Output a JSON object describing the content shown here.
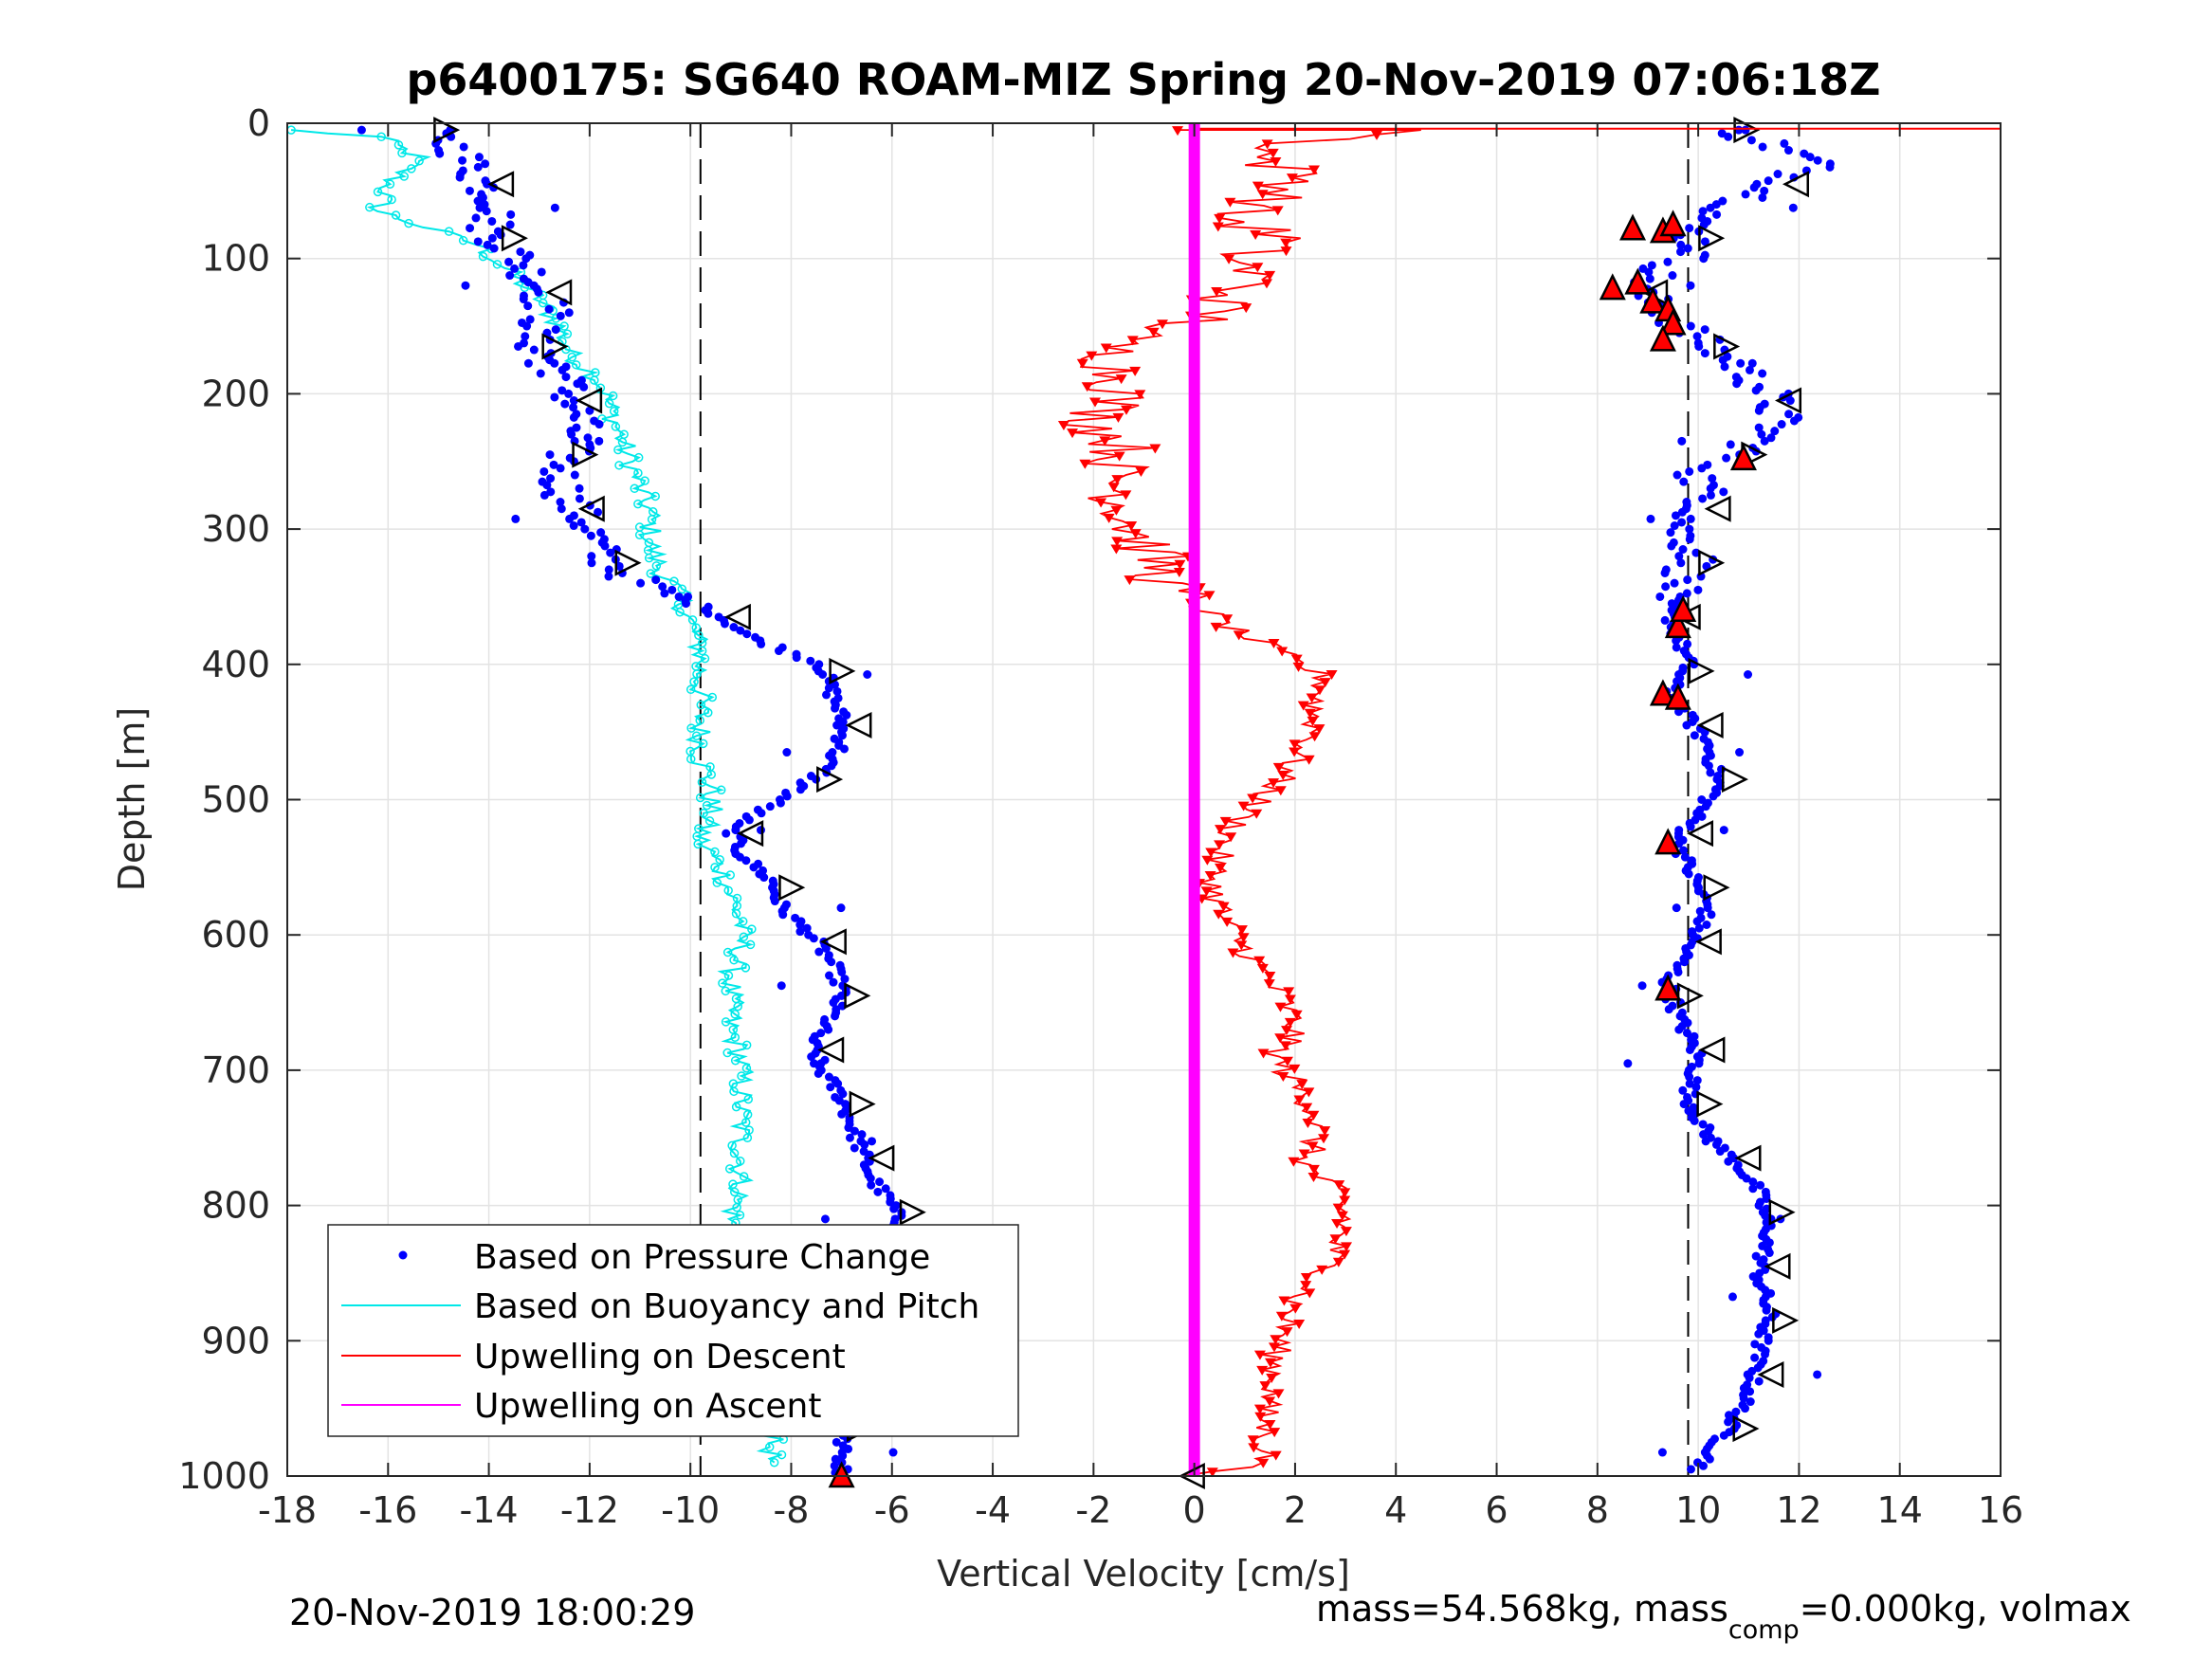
{
  "chart_data": {
    "type": "scatter",
    "title": "p6400175: SG640 ROAM-MIZ Spring 20-Nov-2019 07:06:18Z",
    "xlabel": "Vertical Velocity [cm/s]",
    "ylabel": "Depth [m]",
    "xlim": [
      -18,
      16
    ],
    "ylim": [
      0,
      1000
    ],
    "y_reversed": true,
    "xticks": [
      -18,
      -16,
      -14,
      -12,
      -10,
      -8,
      -6,
      -4,
      -2,
      0,
      2,
      4,
      6,
      8,
      10,
      12,
      14,
      16
    ],
    "yticks": [
      0,
      100,
      200,
      300,
      400,
      500,
      600,
      700,
      800,
      900,
      1000
    ],
    "grid": true,
    "legend_position": "bottom-left",
    "reference_lines_x": [
      -9.8,
      9.8
    ],
    "series": [
      {
        "name": "Based on Pressure Change",
        "color": "#0000ff",
        "style": "dots",
        "descent": [
          [
            -15.2,
            5
          ],
          [
            -14.6,
            20
          ],
          [
            -14.2,
            40
          ],
          [
            -13.8,
            60
          ],
          [
            -14.0,
            80
          ],
          [
            -13.4,
            100
          ],
          [
            -13.0,
            120
          ],
          [
            -12.8,
            140
          ],
          [
            -13.2,
            160
          ],
          [
            -12.6,
            180
          ],
          [
            -12.4,
            200
          ],
          [
            -12.2,
            220
          ],
          [
            -12.4,
            240
          ],
          [
            -12.6,
            260
          ],
          [
            -12.4,
            280
          ],
          [
            -12.0,
            300
          ],
          [
            -11.8,
            320
          ],
          [
            -11.0,
            340
          ],
          [
            -9.6,
            360
          ],
          [
            -8.8,
            380
          ],
          [
            -7.4,
            400
          ],
          [
            -7.2,
            420
          ],
          [
            -7.0,
            440
          ],
          [
            -7.0,
            460
          ],
          [
            -7.4,
            480
          ],
          [
            -8.2,
            500
          ],
          [
            -9.2,
            520
          ],
          [
            -9.0,
            540
          ],
          [
            -8.4,
            560
          ],
          [
            -8.2,
            580
          ],
          [
            -7.6,
            600
          ],
          [
            -7.2,
            620
          ],
          [
            -7.0,
            640
          ],
          [
            -7.2,
            660
          ],
          [
            -7.6,
            680
          ],
          [
            -7.4,
            700
          ],
          [
            -7.0,
            720
          ],
          [
            -6.8,
            740
          ],
          [
            -6.6,
            760
          ],
          [
            -6.4,
            780
          ],
          [
            -6.0,
            800
          ],
          [
            -5.8,
            820
          ],
          [
            -6.2,
            840
          ],
          [
            -6.6,
            860
          ],
          [
            -6.8,
            880
          ],
          [
            -7.0,
            900
          ],
          [
            -6.8,
            920
          ],
          [
            -7.0,
            940
          ],
          [
            -7.0,
            960
          ],
          [
            -7.0,
            980
          ],
          [
            -7.0,
            1000
          ]
        ],
        "ascent": [
          [
            10.0,
            995
          ],
          [
            10.5,
            970
          ],
          [
            11.0,
            940
          ],
          [
            11.2,
            910
          ],
          [
            11.4,
            880
          ],
          [
            11.2,
            850
          ],
          [
            11.4,
            820
          ],
          [
            11.2,
            790
          ],
          [
            10.8,
            770
          ],
          [
            10.2,
            750
          ],
          [
            9.8,
            720
          ],
          [
            10.0,
            690
          ],
          [
            9.6,
            660
          ],
          [
            9.4,
            635
          ],
          [
            9.8,
            610
          ],
          [
            10.2,
            580
          ],
          [
            9.8,
            550
          ],
          [
            9.6,
            530
          ],
          [
            10.0,
            510
          ],
          [
            10.4,
            490
          ],
          [
            10.2,
            460
          ],
          [
            9.8,
            440
          ],
          [
            9.4,
            420
          ],
          [
            9.8,
            400
          ],
          [
            9.6,
            380
          ],
          [
            9.4,
            360
          ],
          [
            9.6,
            340
          ],
          [
            10.0,
            320
          ],
          [
            9.6,
            300
          ],
          [
            10.2,
            280
          ],
          [
            10.0,
            260
          ],
          [
            11.0,
            240
          ],
          [
            11.6,
            220
          ],
          [
            11.4,
            200
          ],
          [
            10.8,
            180
          ],
          [
            10.0,
            160
          ],
          [
            9.4,
            140
          ],
          [
            8.8,
            125
          ],
          [
            9.2,
            110
          ],
          [
            10.0,
            95
          ],
          [
            9.8,
            75
          ],
          [
            10.8,
            60
          ],
          [
            11.6,
            45
          ],
          [
            12.4,
            30
          ],
          [
            11.4,
            15
          ],
          [
            10.6,
            5
          ]
        ]
      },
      {
        "name": "Based on Buoyancy and Pitch",
        "color": "#00e8e8",
        "style": "line-circles",
        "descent": [
          [
            -18.0,
            5
          ],
          [
            -16.2,
            10
          ],
          [
            -15.4,
            25
          ],
          [
            -16.0,
            45
          ],
          [
            -16.2,
            65
          ],
          [
            -15.0,
            80
          ],
          [
            -14.2,
            90
          ],
          [
            -13.6,
            110
          ],
          [
            -13.0,
            130
          ],
          [
            -12.6,
            150
          ],
          [
            -12.4,
            170
          ],
          [
            -11.8,
            190
          ],
          [
            -11.6,
            210
          ],
          [
            -11.4,
            230
          ],
          [
            -11.2,
            250
          ],
          [
            -11.0,
            270
          ],
          [
            -10.8,
            290
          ],
          [
            -10.8,
            310
          ],
          [
            -10.6,
            330
          ],
          [
            -10.2,
            350
          ],
          [
            -10.0,
            370
          ],
          [
            -9.8,
            390
          ],
          [
            -9.8,
            410
          ],
          [
            -9.8,
            430
          ],
          [
            -9.8,
            450
          ],
          [
            -9.8,
            470
          ],
          [
            -9.6,
            490
          ],
          [
            -9.6,
            510
          ],
          [
            -9.8,
            530
          ],
          [
            -9.4,
            550
          ],
          [
            -9.2,
            570
          ],
          [
            -9.0,
            590
          ],
          [
            -9.0,
            610
          ],
          [
            -9.2,
            630
          ],
          [
            -9.2,
            650
          ],
          [
            -9.2,
            670
          ],
          [
            -9.0,
            690
          ],
          [
            -9.0,
            710
          ],
          [
            -9.0,
            730
          ],
          [
            -9.0,
            750
          ],
          [
            -9.0,
            770
          ],
          [
            -9.0,
            790
          ],
          [
            -9.2,
            810
          ],
          [
            -9.0,
            830
          ],
          [
            -8.8,
            850
          ],
          [
            -8.8,
            870
          ],
          [
            -8.6,
            890
          ],
          [
            -8.6,
            910
          ],
          [
            -8.6,
            930
          ],
          [
            -8.6,
            950
          ],
          [
            -8.4,
            970
          ],
          [
            -8.4,
            990
          ]
        ],
        "ascent": []
      },
      {
        "name": "Upwelling on Descent",
        "color": "#ff0000",
        "style": "line-triangles",
        "descent": [
          [
            0.0,
            5
          ],
          [
            4.5,
            5
          ],
          [
            2.0,
            15
          ],
          [
            1.2,
            25
          ],
          [
            2.2,
            40
          ],
          [
            1.6,
            55
          ],
          [
            0.6,
            70
          ],
          [
            1.8,
            85
          ],
          [
            0.8,
            100
          ],
          [
            1.2,
            115
          ],
          [
            0.6,
            130
          ],
          [
            0.2,
            145
          ],
          [
            -1.6,
            160
          ],
          [
            -1.6,
            180
          ],
          [
            -1.4,
            200
          ],
          [
            -2.0,
            220
          ],
          [
            -1.4,
            240
          ],
          [
            -1.6,
            260
          ],
          [
            -1.4,
            280
          ],
          [
            -1.2,
            300
          ],
          [
            -0.8,
            320
          ],
          [
            -0.6,
            340
          ],
          [
            0.2,
            360
          ],
          [
            0.8,
            375
          ],
          [
            1.6,
            390
          ],
          [
            2.6,
            410
          ],
          [
            2.4,
            430
          ],
          [
            2.4,
            450
          ],
          [
            2.0,
            470
          ],
          [
            1.6,
            490
          ],
          [
            1.0,
            510
          ],
          [
            0.6,
            530
          ],
          [
            0.4,
            550
          ],
          [
            0.4,
            570
          ],
          [
            0.6,
            590
          ],
          [
            1.0,
            610
          ],
          [
            1.4,
            630
          ],
          [
            1.8,
            650
          ],
          [
            2.0,
            670
          ],
          [
            1.6,
            690
          ],
          [
            2.0,
            710
          ],
          [
            2.4,
            730
          ],
          [
            2.4,
            750
          ],
          [
            2.2,
            770
          ],
          [
            2.8,
            790
          ],
          [
            3.0,
            810
          ],
          [
            2.8,
            830
          ],
          [
            2.6,
            850
          ],
          [
            2.0,
            870
          ],
          [
            1.8,
            890
          ],
          [
            1.6,
            910
          ],
          [
            1.6,
            930
          ],
          [
            1.4,
            950
          ],
          [
            1.4,
            970
          ],
          [
            1.4,
            990
          ],
          [
            0.0,
            1000
          ]
        ],
        "ascent": []
      },
      {
        "name": "Upwelling on Ascent",
        "color": "#ff00ff",
        "style": "line",
        "descent": [],
        "ascent": [
          [
            0.0,
            0
          ],
          [
            0.0,
            1000
          ]
        ]
      }
    ]
  },
  "footer": {
    "timestamp": "20-Nov-2019 18:00:29",
    "mass_text_a": "mass=54.568kg, mass",
    "mass_sub": "comp",
    "mass_text_b": "=0.000kg, volmax"
  },
  "colors": {
    "grid": "#e3e3e3",
    "axis": "#262626",
    "pressure": "#0000ff",
    "buoyancy": "#00e8e8",
    "upwelling_descent": "#ff0000",
    "upwelling_ascent": "#ff00ff"
  }
}
